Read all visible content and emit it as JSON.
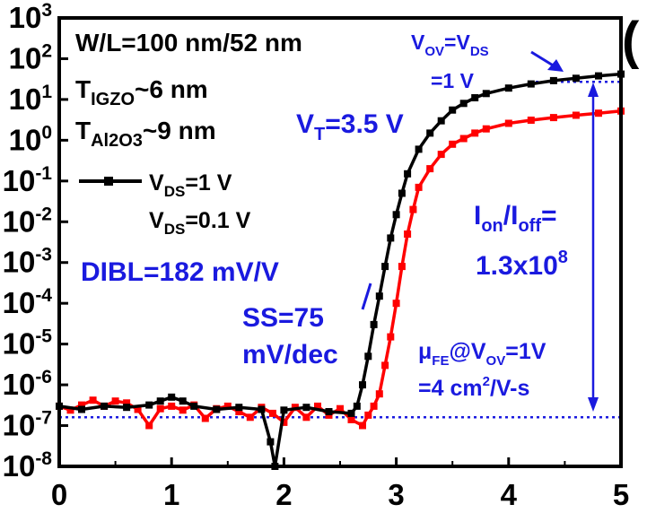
{
  "chart_data": {
    "type": "line",
    "x_ticks": [
      "0",
      "1",
      "2",
      "3",
      "4",
      "5"
    ],
    "y_ticks": [
      "10^-8",
      "10^-7",
      "10^-6",
      "10^-5",
      "10^-4",
      "10^-3",
      "10^-2",
      "10^-1",
      "10^0",
      "10^1",
      "10^2",
      "10^3"
    ],
    "xlim": [
      0,
      5
    ],
    "ylim_log10": [
      -8,
      3
    ],
    "y_scale": "log",
    "grid": false,
    "legend_position": "top-left",
    "series": [
      {
        "name": "V_DS=1 V",
        "color": "#000000",
        "marker": "square",
        "x": [
          0.0,
          0.2,
          0.4,
          0.6,
          0.8,
          0.9,
          1.0,
          1.1,
          1.2,
          1.4,
          1.6,
          1.8,
          1.88,
          1.92,
          2.0,
          2.2,
          2.4,
          2.6,
          2.65,
          2.7,
          2.75,
          2.8,
          2.85,
          2.9,
          2.95,
          3.0,
          3.05,
          3.1,
          3.2,
          3.3,
          3.4,
          3.5,
          3.6,
          3.7,
          3.8,
          4.0,
          4.2,
          4.4,
          4.6,
          4.8,
          5.0
        ],
        "y": [
          3e-07,
          2.5e-07,
          3e-07,
          2.8e-07,
          3.2e-07,
          4e-07,
          5e-07,
          4e-07,
          3e-07,
          2.5e-07,
          2.8e-07,
          2.5e-07,
          4e-08,
          1e-08,
          2.4e-07,
          2.8e-07,
          2.2e-07,
          2e-07,
          3e-07,
          1e-06,
          5e-06,
          3e-05,
          0.00015,
          0.0008,
          0.004,
          0.015,
          0.05,
          0.15,
          0.6,
          1.5,
          3,
          5.5,
          8,
          11,
          14,
          19,
          24,
          29,
          33,
          38,
          42
        ]
      },
      {
        "name": "V_DS=0.1 V",
        "color": "#ff0000",
        "marker": "square",
        "x": [
          0.0,
          0.1,
          0.2,
          0.3,
          0.4,
          0.5,
          0.6,
          0.7,
          0.8,
          0.9,
          1.0,
          1.1,
          1.2,
          1.3,
          1.4,
          1.5,
          1.6,
          1.7,
          1.8,
          1.9,
          2.0,
          2.1,
          2.2,
          2.3,
          2.4,
          2.5,
          2.6,
          2.7,
          2.75,
          2.8,
          2.85,
          2.9,
          2.95,
          3.0,
          3.05,
          3.1,
          3.15,
          3.2,
          3.3,
          3.4,
          3.5,
          3.6,
          3.7,
          3.8,
          4.0,
          4.2,
          4.4,
          4.6,
          4.8,
          5.0
        ],
        "y": [
          3e-07,
          2.4e-07,
          3.2e-07,
          4.2e-07,
          3e-07,
          4e-07,
          3.6e-07,
          2.5e-07,
          1e-07,
          2.6e-07,
          3e-07,
          2.4e-07,
          3.2e-07,
          1.5e-07,
          2.6e-07,
          3e-07,
          2.2e-07,
          1.6e-07,
          2.8e-07,
          2e-07,
          1.2e-07,
          2.8e-07,
          1.6e-07,
          3e-07,
          1.8e-07,
          2.6e-07,
          1.4e-07,
          1e-07,
          1.8e-07,
          3e-07,
          6e-07,
          3e-06,
          1.5e-05,
          0.0001,
          0.0008,
          0.005,
          0.02,
          0.07,
          0.2,
          0.45,
          0.8,
          1.1,
          1.5,
          1.9,
          2.6,
          3.1,
          3.6,
          4.1,
          4.6,
          5.2
        ]
      }
    ],
    "hlines_y": [
      1.6e-07,
      27
    ],
    "annotations": {
      "wl": "W/L=100 nm/52 nm",
      "t_igzo_main": "T",
      "t_igzo_sub": "IGZO",
      "t_igzo_tail": "~6 nm",
      "t_al_main": "T",
      "t_al_sub": "Al2O3",
      "t_al_tail": "~9 nm",
      "leg1_main": "V",
      "leg1_sub": "DS",
      "leg1_tail": "=1 V",
      "leg2_main": "V",
      "leg2_sub": "DS",
      "leg2_tail": "=0.1 V",
      "vt_main": "V",
      "vt_sub": "T",
      "vt_tail": "=3.5 V",
      "dibl": "DIBL=182 mV/V",
      "ss_line1": "SS=75",
      "ss_line2": "mV/dec",
      "vov_a": "V",
      "vov_a_sub": "OV",
      "vov_eq": "=V",
      "vov_b_sub": "DS",
      "vov_line2": "=1 V",
      "ion_main": "I",
      "ion_sub": "on",
      "ion_slash": "/I",
      "ioff_sub": "off",
      "ion_eq": "=",
      "ratio_base": "1.3x10",
      "ratio_exp": "8",
      "mu_main": "μ",
      "mu_sub": "FE",
      "mu_at": "@V",
      "mu_ov_sub": "OV",
      "mu_tail": "=1V",
      "mu_line2_a": "=4 cm",
      "mu_line2_exp": "2",
      "mu_line2_b": "/V-s",
      "panel_fragment": "("
    }
  }
}
